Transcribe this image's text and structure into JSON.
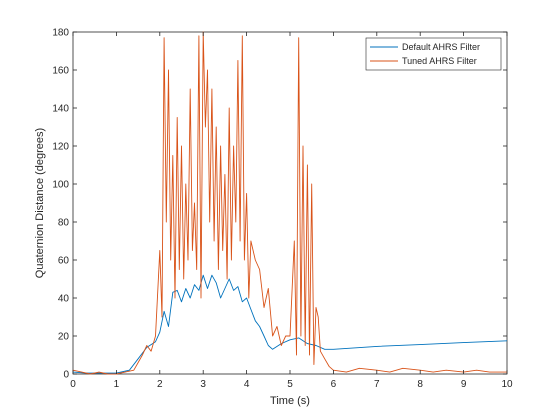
{
  "colors": {
    "default_series": "#0072BD",
    "tuned_series": "#D95319",
    "axes": "#262626",
    "background": "#ffffff"
  },
  "chart_data": {
    "type": "line",
    "title": "",
    "xlabel": "Time (s)",
    "ylabel": "Quaternion Distance (degrees)",
    "xlim": [
      0,
      10
    ],
    "ylim": [
      0,
      180
    ],
    "xticks": [
      0,
      1,
      2,
      3,
      4,
      5,
      6,
      7,
      8,
      9,
      10
    ],
    "yticks": [
      0,
      20,
      40,
      60,
      80,
      100,
      120,
      140,
      160,
      180
    ],
    "grid": false,
    "legend_position": "top-right",
    "series": [
      {
        "name": "Default AHRS Filter",
        "color": "#0072BD",
        "x": [
          0,
          0.3,
          0.6,
          1.0,
          1.3,
          1.5,
          1.7,
          1.9,
          2.0,
          2.1,
          2.2,
          2.3,
          2.4,
          2.5,
          2.6,
          2.7,
          2.8,
          2.9,
          3.0,
          3.1,
          3.2,
          3.3,
          3.4,
          3.5,
          3.6,
          3.7,
          3.8,
          3.9,
          4.0,
          4.1,
          4.2,
          4.3,
          4.4,
          4.5,
          4.6,
          4.8,
          5.0,
          5.2,
          5.4,
          5.6,
          5.8,
          6.0,
          7.0,
          8.0,
          9.0,
          10.0
        ],
        "y": [
          1,
          0.5,
          0.5,
          0.5,
          2,
          8,
          14,
          17,
          22,
          33,
          25,
          43,
          44,
          38,
          45,
          40,
          47,
          44,
          52,
          45,
          52,
          48,
          40,
          45,
          50,
          44,
          46,
          38,
          40,
          34,
          28,
          25,
          20,
          15,
          13,
          16,
          18,
          19,
          16,
          15,
          13,
          13,
          14.5,
          15.5,
          16.5,
          17.5
        ]
      },
      {
        "name": "Tuned AHRS Filter",
        "color": "#D95319",
        "x": [
          0,
          0.2,
          0.4,
          0.6,
          0.8,
          1.0,
          1.2,
          1.4,
          1.5,
          1.6,
          1.7,
          1.8,
          1.9,
          2.0,
          2.05,
          2.1,
          2.15,
          2.2,
          2.25,
          2.3,
          2.35,
          2.4,
          2.45,
          2.5,
          2.55,
          2.6,
          2.65,
          2.7,
          2.75,
          2.8,
          2.85,
          2.9,
          2.95,
          3.0,
          3.05,
          3.1,
          3.15,
          3.2,
          3.25,
          3.3,
          3.35,
          3.4,
          3.45,
          3.5,
          3.55,
          3.6,
          3.65,
          3.7,
          3.75,
          3.8,
          3.85,
          3.9,
          3.95,
          4.0,
          4.05,
          4.1,
          4.2,
          4.3,
          4.4,
          4.5,
          4.6,
          4.7,
          4.8,
          4.9,
          5.0,
          5.1,
          5.15,
          5.2,
          5.25,
          5.3,
          5.35,
          5.4,
          5.45,
          5.5,
          5.55,
          5.6,
          5.65,
          5.7,
          5.8,
          5.9,
          6.0,
          6.3,
          6.6,
          7.0,
          7.3,
          7.6,
          8.0,
          8.3,
          8.6,
          9.0,
          9.3,
          9.6,
          10.0
        ],
        "y": [
          2,
          1,
          0,
          1,
          0,
          0,
          1,
          2,
          6,
          10,
          15,
          12,
          20,
          65,
          30,
          177,
          80,
          160,
          60,
          115,
          40,
          135,
          55,
          120,
          50,
          100,
          60,
          150,
          65,
          90,
          55,
          178,
          40,
          180,
          130,
          160,
          80,
          150,
          70,
          130,
          55,
          120,
          65,
          105,
          50,
          140,
          60,
          120,
          80,
          165,
          70,
          178,
          60,
          95,
          40,
          70,
          60,
          55,
          35,
          45,
          20,
          25,
          15,
          20,
          20,
          70,
          10,
          177,
          20,
          120,
          15,
          110,
          10,
          100,
          5,
          35,
          30,
          12,
          8,
          4,
          2,
          1,
          3,
          2,
          1,
          3,
          2,
          1,
          2,
          1,
          2,
          1,
          1
        ]
      }
    ]
  }
}
